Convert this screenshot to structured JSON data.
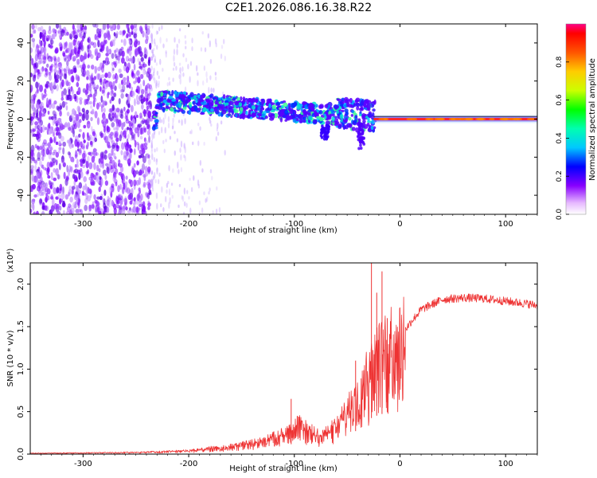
{
  "title": "C2E1.2026.086.16.38.R22",
  "chart_data": [
    {
      "type": "heatmap",
      "name": "spectrogram",
      "xlabel": "Height of straight line (km)",
      "ylabel": "Frequency (Hz)",
      "xlim": [
        -350,
        130
      ],
      "ylim": [
        -50,
        50
      ],
      "xticks": [
        -300,
        -200,
        -100,
        0,
        100
      ],
      "xtick_labels": [
        "-300",
        "-200",
        "-100",
        "0",
        "100"
      ],
      "yticks": [
        -40,
        -20,
        0,
        20,
        40
      ],
      "ytick_labels": [
        "-40",
        "-20",
        "0",
        "20",
        "40"
      ],
      "colorbar": {
        "label": "Normalized spectral amplitude",
        "range": [
          0.0,
          1.0
        ],
        "ticks": [
          0.0,
          0.2,
          0.4,
          0.6,
          0.8
        ],
        "tick_labels": [
          "0.0",
          "0.2",
          "0.4",
          "0.6",
          "0.8"
        ]
      },
      "features": {
        "noise_region_end_km": -235,
        "signal_center_line": [
          {
            "x": -230,
            "freq": 10
          },
          {
            "x": -150,
            "freq": 6
          },
          {
            "x": -80,
            "freq": 3
          },
          {
            "x": -30,
            "freq": 2
          },
          {
            "x": 0,
            "freq": 1
          },
          {
            "x": 130,
            "freq": 0
          }
        ],
        "strong_tone_start_km": -25,
        "strong_tone_freq_hz": 0
      }
    },
    {
      "type": "line",
      "name": "snr",
      "xlabel": "Height of straight line (km)",
      "ylabel": "SNR (10 * v/v)",
      "y_multiplier_label": "(x10⁴)",
      "xlim": [
        -350,
        130
      ],
      "ylim": [
        0,
        2.25
      ],
      "xticks": [
        -300,
        -200,
        -100,
        0,
        100
      ],
      "xtick_labels": [
        "-300",
        "-200",
        "-100",
        "0",
        "100"
      ],
      "yticks": [
        0.0,
        0.5,
        1.0,
        1.5,
        2.0
      ],
      "ytick_labels": [
        "0.0",
        "0.5",
        "1.0",
        "1.5",
        "2.0"
      ],
      "series_color": "#ee3333",
      "envelope": {
        "x": [
          -350,
          -250,
          -200,
          -160,
          -130,
          -110,
          -95,
          -85,
          -75,
          -60,
          -50,
          -40,
          -30,
          -25,
          -15,
          -5,
          0,
          10,
          20,
          40,
          60,
          80,
          100,
          120,
          130
        ],
        "y": [
          0.01,
          0.02,
          0.04,
          0.09,
          0.15,
          0.24,
          0.35,
          0.26,
          0.22,
          0.33,
          0.5,
          0.72,
          1.0,
          1.1,
          1.2,
          1.3,
          1.38,
          1.55,
          1.7,
          1.82,
          1.84,
          1.83,
          1.8,
          1.77,
          1.75
        ]
      },
      "spikes": [
        {
          "x": -103,
          "y": 0.65
        },
        {
          "x": -42,
          "y": 1.1
        },
        {
          "x": -27,
          "y": 2.25
        },
        {
          "x": -22,
          "y": 1.9
        },
        {
          "x": -17,
          "y": 2.15
        },
        {
          "x": -12,
          "y": 1.6
        }
      ]
    }
  ]
}
